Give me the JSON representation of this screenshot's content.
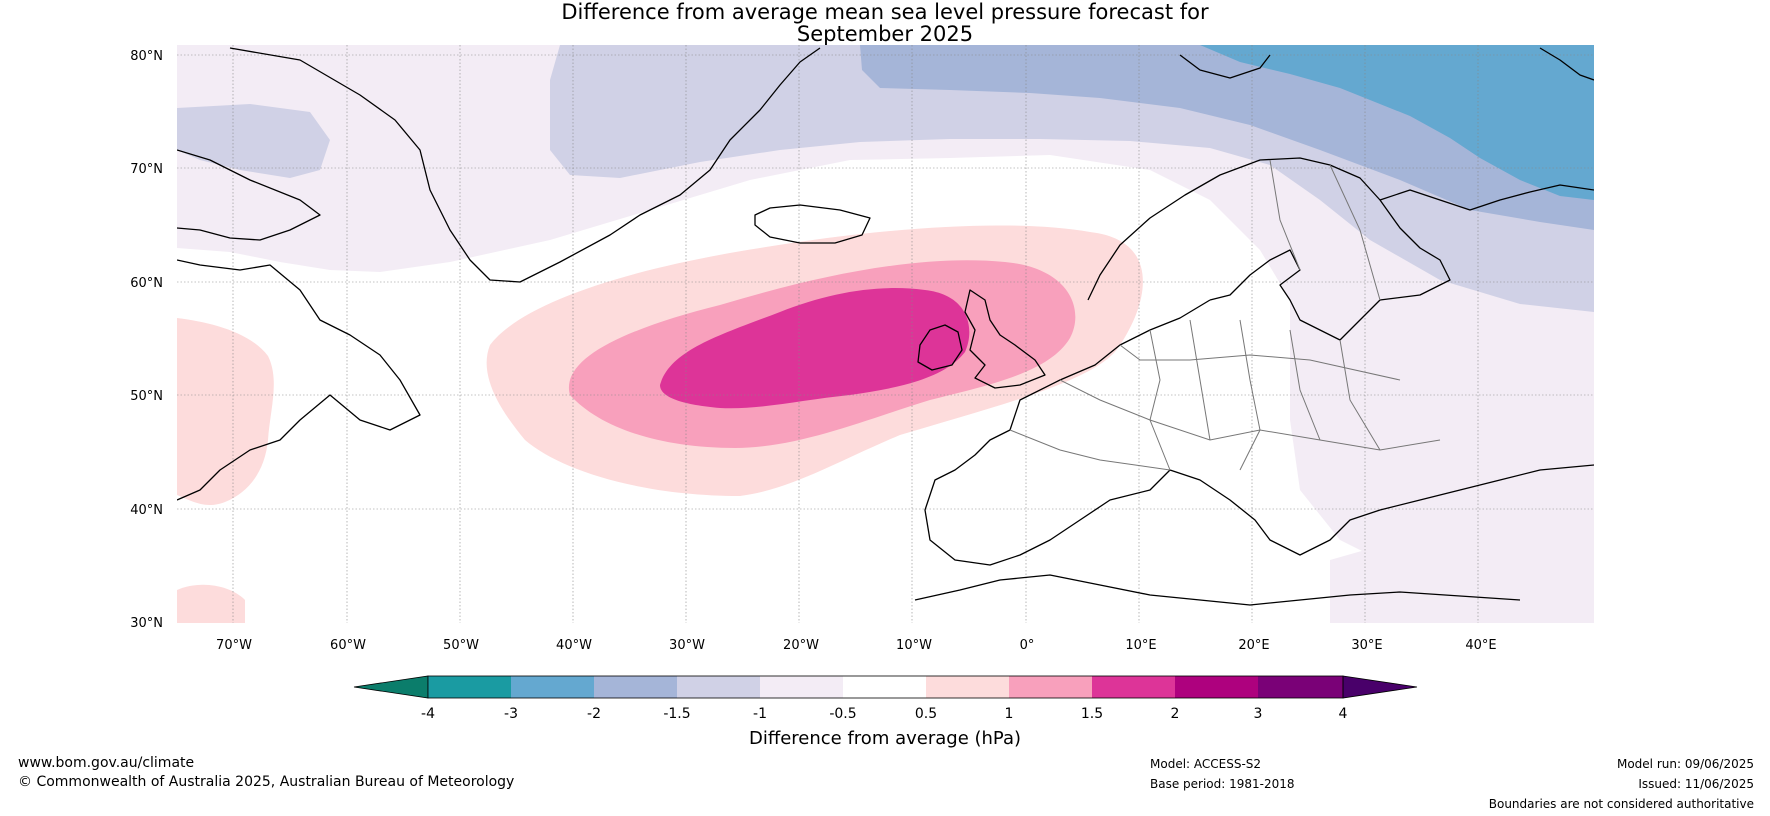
{
  "title": {
    "line1": "Difference from average mean sea level pressure forecast for",
    "line2": "September 2025"
  },
  "map": {
    "lat_labels": [
      "80°N",
      "70°N",
      "60°N",
      "50°N",
      "40°N",
      "30°N"
    ],
    "lon_labels": [
      "70°W",
      "60°W",
      "50°W",
      "40°W",
      "30°W",
      "20°W",
      "10°W",
      "0°",
      "10°E",
      "20°E",
      "30°E",
      "40°E"
    ]
  },
  "colorbar": {
    "label": "Difference from average (hPa)",
    "ticks": [
      "-4",
      "-3",
      "-2",
      "-1.5",
      "-1",
      "-0.5",
      "0.5",
      "1",
      "1.5",
      "2",
      "3",
      "4"
    ],
    "colors": {
      "lt_neg4": "#0b7d6b",
      "neg4_neg3": "#1a9ba2",
      "neg3_neg2": "#64a8d0",
      "neg2_neg1_5": "#a5b5d8",
      "neg1_5_neg1": "#d0d1e6",
      "neg1_neg0_5": "#f3ecf5",
      "neg0_5_0_5": "#ffffff",
      "p0_5_1": "#fddcdc",
      "p1_1_5": "#f8a0bc",
      "p1_5_2": "#dd3498",
      "p2_3": "#ae017e",
      "p3_4": "#7a0177",
      "gt4": "#49006a"
    }
  },
  "footer": {
    "website": "www.bom.gov.au/climate",
    "copyright": "© Commonwealth of Australia 2025, Australian Bureau of Meteorology",
    "model": "Model: ACCESS-S2",
    "base_period": "Base period: 1981-2018",
    "model_run": "Model run: 09/06/2025",
    "issued": "Issued: 11/06/2025",
    "disclaimer": "Boundaries are not considered authoritative"
  }
}
